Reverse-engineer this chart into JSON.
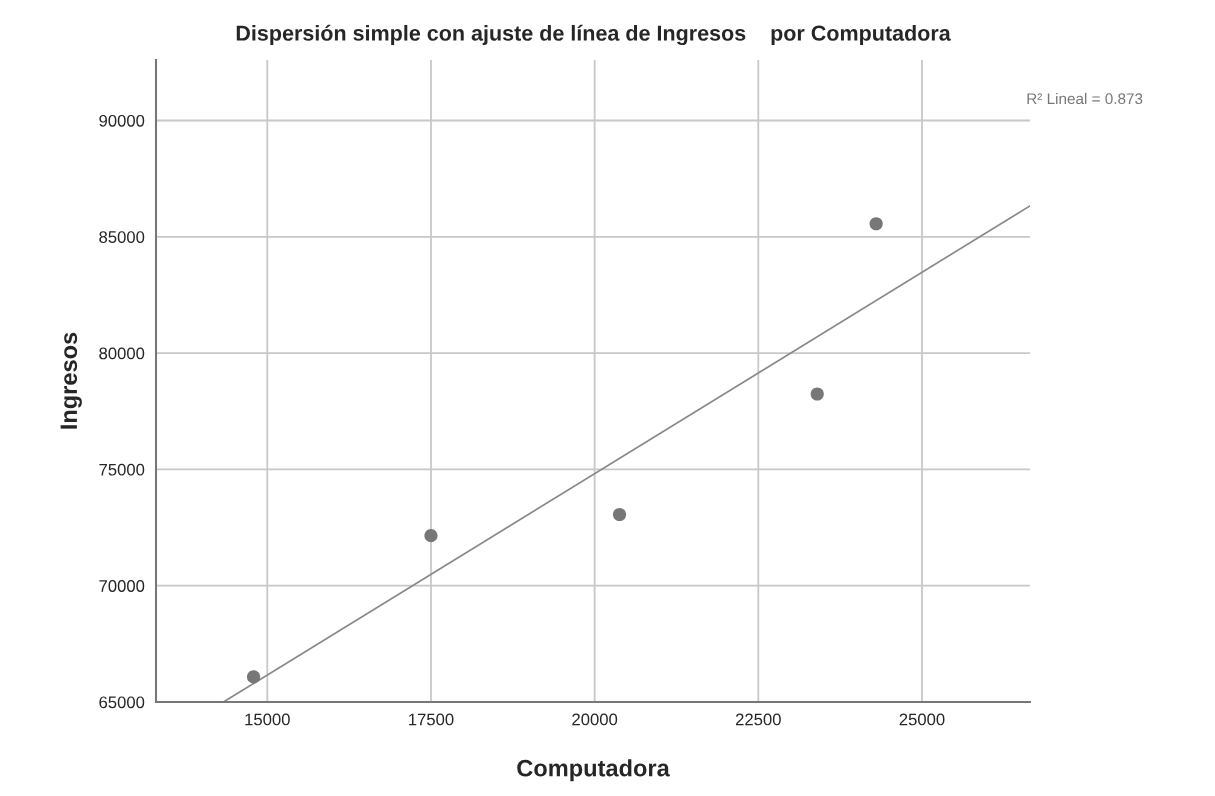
{
  "chart_data": {
    "type": "scatter",
    "title": "Dispersión simple con ajuste de línea de Ingresos    por Computadora",
    "xlabel": "Computadora",
    "ylabel": "Ingresos",
    "annotations": [
      "R² Lineal = 0.873"
    ],
    "series": [
      {
        "marker": "circle",
        "color": "#777777",
        "x": [
          14790,
          17500,
          20380,
          23400,
          24300
        ],
        "values": [
          66080,
          72150,
          73060,
          78240,
          85560
        ]
      },
      {
        "type": "line",
        "color": "#888888",
        "x": [
          14330,
          26650
        ],
        "values": [
          65000,
          86330
        ]
      }
    ],
    "xlim": [
      13300,
      26650
    ],
    "ylim": [
      65000,
      92600
    ],
    "xticks": [
      15000,
      17500,
      20000,
      22500,
      25000
    ],
    "yticks": [
      65000,
      70000,
      75000,
      80000,
      85000,
      90000
    ],
    "grid": true,
    "legend": false
  }
}
